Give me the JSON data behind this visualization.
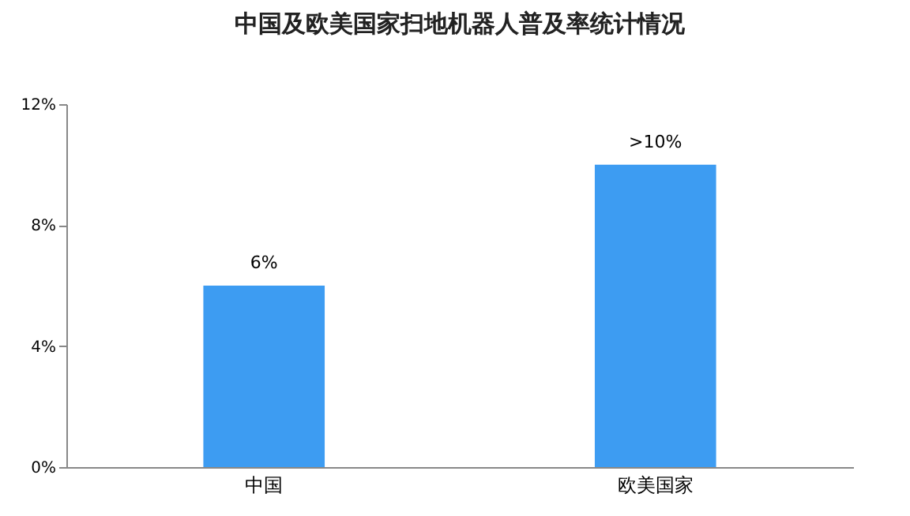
{
  "chart_data": {
    "type": "bar",
    "title": "中国及欧美国家扫地机器人普及率统计情况",
    "categories": [
      "中国",
      "欧美国家"
    ],
    "values": [
      6,
      10
    ],
    "value_labels": [
      "6%",
      ">10%"
    ],
    "color": "#3d9cf2",
    "ylim": [
      0,
      12
    ],
    "yticks": [
      {
        "value": 0,
        "label": "0%"
      },
      {
        "value": 4,
        "label": "4%"
      },
      {
        "value": 8,
        "label": "8%"
      },
      {
        "value": 12,
        "label": "12%"
      }
    ],
    "grid": false
  }
}
